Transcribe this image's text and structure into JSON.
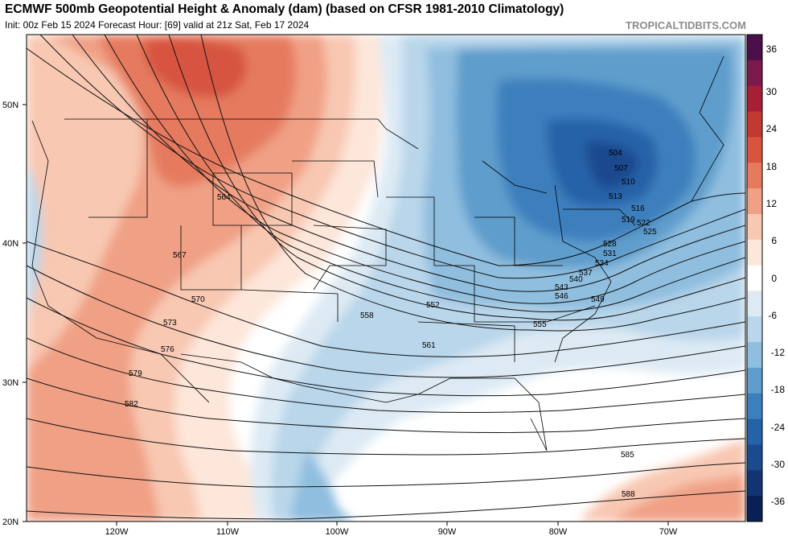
{
  "header": {
    "title": "ECMWF 500mb Geopotential Height & Anomaly (dam) (based on CFSR 1981-2010 Climatology)",
    "subtitle": "Init: 00z Feb 15 2024   Forecast Hour: [69]   valid at 21z Sat, Feb 17 2024",
    "brand": "TROPICALTIDBITS.COM"
  },
  "map": {
    "lat_labels": [
      "50N",
      "40N",
      "30N",
      "20N"
    ],
    "lon_labels": [
      "120W",
      "110W",
      "100W",
      "90W",
      "80W",
      "70W"
    ]
  },
  "colorbar": {
    "labels": [
      "36",
      "30",
      "24",
      "18",
      "12",
      "6",
      "0",
      "-6",
      "-12",
      "-18",
      "-24",
      "-30",
      "-36"
    ],
    "colors": [
      "#4b0f4c",
      "#7a1a4a",
      "#a51f36",
      "#c1392f",
      "#d7553f",
      "#e57a5e",
      "#f0a085",
      "#f8c8b2",
      "#fde6da",
      "#ffffff",
      "#ddeaf4",
      "#b9d6ea",
      "#8fbedf",
      "#5e9dcc",
      "#3c7fbd",
      "#2662a7",
      "#1b4a8e",
      "#123473",
      "#0a1f55"
    ]
  },
  "contour_labels": [
    "504",
    "507",
    "510",
    "513",
    "516",
    "519",
    "522",
    "525",
    "528",
    "531",
    "534",
    "537",
    "540",
    "543",
    "546",
    "549",
    "552",
    "555",
    "558",
    "561",
    "564",
    "567",
    "570",
    "573",
    "576",
    "579",
    "582",
    "585",
    "588"
  ]
}
